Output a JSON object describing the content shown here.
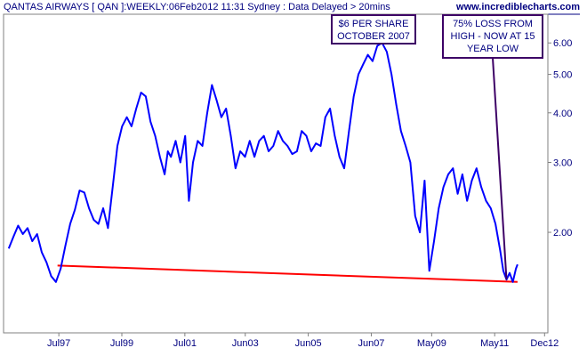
{
  "header": {
    "title": "QANTAS AIRWAYS [ QAN ]:WEEKLY:06Feb2012 11:31 Sydney : Data Delayed > 20mins",
    "site": "www.incrediblecharts.com"
  },
  "colors": {
    "price_line": "#0000ff",
    "trend_line": "#ff0000",
    "annotation_border": "#3d0066",
    "text": "#000080",
    "axis": "#808080"
  },
  "chart_data": {
    "type": "line",
    "title": "QANTAS AIRWAYS [ QAN ]:WEEKLY:06Feb2012 11:31 Sydney : Data Delayed > 20mins",
    "xlabel": "",
    "ylabel": "",
    "yscale": "log",
    "ylim": [
      1.2,
      6.8
    ],
    "xlim": [
      1995.9,
      2012.95
    ],
    "x_tick_labels": [
      "Jul97",
      "Jul99",
      "Jul01",
      "Jun03",
      "Jun05",
      "Jun07",
      "May09",
      "May11",
      "Dec12"
    ],
    "y_tick_labels": [
      "2.00",
      "3.00",
      "4.00",
      "5.00",
      "6.00"
    ],
    "grid": false,
    "series": [
      {
        "values": [
          [
            1995.95,
            1.82
          ],
          [
            1996.1,
            1.95
          ],
          [
            1996.25,
            2.08
          ],
          [
            1996.4,
            1.98
          ],
          [
            1996.55,
            2.05
          ],
          [
            1996.7,
            1.9
          ],
          [
            1996.85,
            1.98
          ],
          [
            1997.0,
            1.78
          ],
          [
            1997.15,
            1.68
          ],
          [
            1997.3,
            1.55
          ],
          [
            1997.45,
            1.5
          ],
          [
            1997.6,
            1.62
          ],
          [
            1997.75,
            1.85
          ],
          [
            1997.9,
            2.1
          ],
          [
            1998.05,
            2.28
          ],
          [
            1998.2,
            2.55
          ],
          [
            1998.35,
            2.52
          ],
          [
            1998.5,
            2.3
          ],
          [
            1998.65,
            2.15
          ],
          [
            1998.8,
            2.1
          ],
          [
            1998.95,
            2.3
          ],
          [
            1999.1,
            2.05
          ],
          [
            1999.25,
            2.6
          ],
          [
            1999.4,
            3.3
          ],
          [
            1999.55,
            3.7
          ],
          [
            1999.7,
            3.9
          ],
          [
            1999.85,
            3.7
          ],
          [
            2000.0,
            4.1
          ],
          [
            2000.15,
            4.5
          ],
          [
            2000.3,
            4.4
          ],
          [
            2000.45,
            3.8
          ],
          [
            2000.6,
            3.5
          ],
          [
            2000.75,
            3.1
          ],
          [
            2000.9,
            2.8
          ],
          [
            2001.0,
            3.2
          ],
          [
            2001.1,
            3.1
          ],
          [
            2001.25,
            3.4
          ],
          [
            2001.4,
            3.0
          ],
          [
            2001.55,
            3.5
          ],
          [
            2001.67,
            2.4
          ],
          [
            2001.8,
            3.0
          ],
          [
            2001.95,
            3.4
          ],
          [
            2002.1,
            3.3
          ],
          [
            2002.25,
            4.0
          ],
          [
            2002.4,
            4.7
          ],
          [
            2002.55,
            4.3
          ],
          [
            2002.7,
            3.9
          ],
          [
            2002.85,
            4.1
          ],
          [
            2003.0,
            3.5
          ],
          [
            2003.15,
            2.9
          ],
          [
            2003.3,
            3.2
          ],
          [
            2003.45,
            3.1
          ],
          [
            2003.6,
            3.4
          ],
          [
            2003.75,
            3.1
          ],
          [
            2003.9,
            3.4
          ],
          [
            2004.05,
            3.5
          ],
          [
            2004.2,
            3.2
          ],
          [
            2004.35,
            3.3
          ],
          [
            2004.5,
            3.6
          ],
          [
            2004.65,
            3.4
          ],
          [
            2004.8,
            3.3
          ],
          [
            2004.95,
            3.15
          ],
          [
            2005.1,
            3.2
          ],
          [
            2005.25,
            3.6
          ],
          [
            2005.4,
            3.5
          ],
          [
            2005.55,
            3.2
          ],
          [
            2005.7,
            3.35
          ],
          [
            2005.85,
            3.3
          ],
          [
            2006.0,
            3.9
          ],
          [
            2006.15,
            4.1
          ],
          [
            2006.3,
            3.5
          ],
          [
            2006.45,
            3.1
          ],
          [
            2006.6,
            2.9
          ],
          [
            2006.75,
            3.6
          ],
          [
            2006.9,
            4.4
          ],
          [
            2007.05,
            5.0
          ],
          [
            2007.2,
            5.3
          ],
          [
            2007.35,
            5.6
          ],
          [
            2007.5,
            5.4
          ],
          [
            2007.65,
            5.9
          ],
          [
            2007.8,
            6.0
          ],
          [
            2007.95,
            5.7
          ],
          [
            2008.1,
            5.0
          ],
          [
            2008.25,
            4.2
          ],
          [
            2008.4,
            3.6
          ],
          [
            2008.55,
            3.3
          ],
          [
            2008.7,
            3.0
          ],
          [
            2008.85,
            2.2
          ],
          [
            2009.0,
            2.0
          ],
          [
            2009.15,
            2.7
          ],
          [
            2009.3,
            1.6
          ],
          [
            2009.45,
            1.9
          ],
          [
            2009.6,
            2.3
          ],
          [
            2009.75,
            2.6
          ],
          [
            2009.9,
            2.8
          ],
          [
            2010.05,
            2.9
          ],
          [
            2010.2,
            2.5
          ],
          [
            2010.35,
            2.8
          ],
          [
            2010.5,
            2.4
          ],
          [
            2010.65,
            2.7
          ],
          [
            2010.8,
            2.9
          ],
          [
            2010.95,
            2.6
          ],
          [
            2011.1,
            2.4
          ],
          [
            2011.25,
            2.3
          ],
          [
            2011.4,
            2.1
          ],
          [
            2011.55,
            1.8
          ],
          [
            2011.65,
            1.6
          ],
          [
            2011.75,
            1.52
          ],
          [
            2011.85,
            1.58
          ],
          [
            2011.95,
            1.5
          ],
          [
            2012.05,
            1.62
          ],
          [
            2012.1,
            1.66
          ]
        ]
      }
    ],
    "trendline": {
      "from": [
        1997.5,
        1.65
      ],
      "to": [
        2012.1,
        1.5
      ]
    },
    "annotations": [
      {
        "id": "peak",
        "lines": [
          "$6 PER SHARE",
          "OCTOBER 2007"
        ],
        "target": [
          2007.8,
          6.0
        ]
      },
      {
        "id": "low",
        "lines": [
          "75% LOSS FROM",
          "HIGH - NOW AT 15",
          "YEAR LOW"
        ],
        "target": [
          2011.75,
          1.52
        ]
      }
    ]
  }
}
